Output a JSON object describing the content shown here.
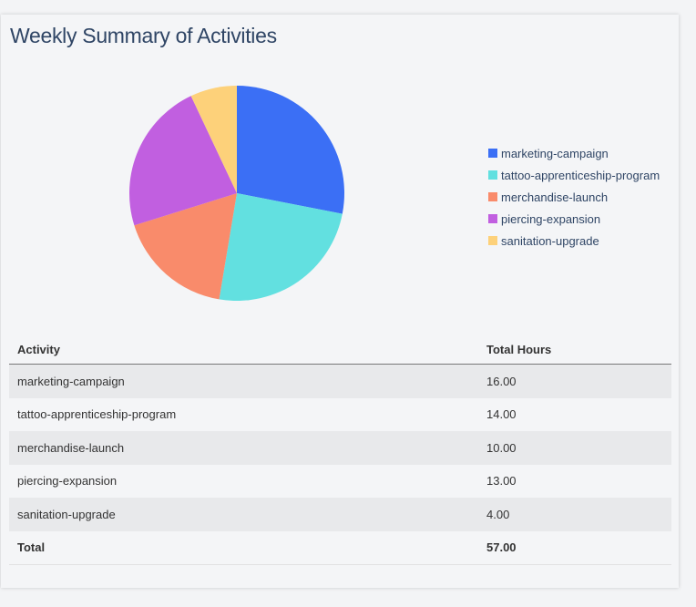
{
  "title": "Weekly Summary of Activities",
  "chart_data": {
    "type": "pie",
    "title": "Weekly Summary of Activities",
    "categories": [
      "marketing-campaign",
      "tattoo-apprenticeship-program",
      "merchandise-launch",
      "piercing-expansion",
      "sanitation-upgrade"
    ],
    "values": [
      16,
      14,
      10,
      13,
      4
    ],
    "colors": [
      "#3b6ff5",
      "#62e0e0",
      "#f98b6b",
      "#c15fe0",
      "#fdd17a"
    ],
    "legend_position": "right"
  },
  "table": {
    "headers": [
      "Activity",
      "Total Hours"
    ],
    "rows": [
      [
        "marketing-campaign",
        "16.00"
      ],
      [
        "tattoo-apprenticeship-program",
        "14.00"
      ],
      [
        "merchandise-launch",
        "10.00"
      ],
      [
        "piercing-expansion",
        "13.00"
      ],
      [
        "sanitation-upgrade",
        "4.00"
      ]
    ],
    "total": [
      "Total",
      "57.00"
    ]
  }
}
